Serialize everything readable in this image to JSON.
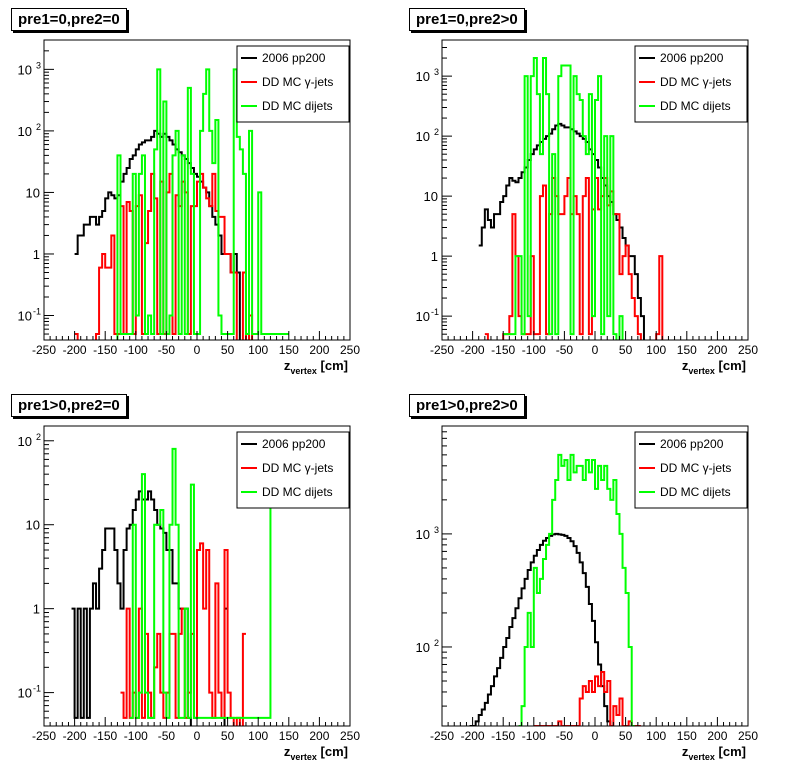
{
  "chart_data": [
    {
      "type": "histogram",
      "title": "pre1=0,pre2=0",
      "xlabel_main": "z",
      "xlabel_sub": "vertex",
      "xlabel_unit": " [cm]",
      "xlim": [
        -250,
        250
      ],
      "ylog": true,
      "ylim": [
        0.04,
        3000
      ],
      "xticks": [
        -250,
        -200,
        -150,
        -100,
        -50,
        0,
        50,
        100,
        150,
        200,
        250
      ],
      "yticks": [
        {
          "v": 0.1,
          "t": "10",
          "e": "-1"
        },
        {
          "v": 1,
          "t": "1",
          "e": ""
        },
        {
          "v": 10,
          "t": "10",
          "e": ""
        },
        {
          "v": 100,
          "t": "10",
          "e": "2"
        },
        {
          "v": 1000,
          "t": "10",
          "e": "3"
        }
      ],
      "legend": [
        "2006 pp200",
        "DD MC γ-jets",
        "DD MC dijets"
      ],
      "bin_width": 5,
      "series": [
        {
          "name": "2006 pp200",
          "color": "#000000",
          "start": -200,
          "values": [
            1,
            2,
            2,
            3,
            3,
            4,
            4,
            3,
            4,
            5,
            8,
            10,
            9,
            8,
            9,
            15,
            20,
            25,
            35,
            40,
            50,
            60,
            65,
            70,
            70,
            80,
            100,
            90,
            80,
            90,
            80,
            70,
            60,
            50,
            45,
            40,
            35,
            30,
            25,
            20,
            18,
            15,
            12,
            10,
            6,
            4,
            3,
            2,
            1,
            1,
            1,
            0.5,
            1,
            0.5,
            0,
            0
          ]
        },
        {
          "name": "DD MC γ-jets",
          "color": "#ff0000",
          "start": -200,
          "values": [
            0.05,
            0,
            0,
            0,
            0,
            0,
            0,
            0.05,
            0.6,
            1,
            0.6,
            0.6,
            2,
            0.05,
            0.05,
            6,
            0.05,
            7,
            5,
            0.05,
            6,
            9,
            0.05,
            1.5,
            5,
            20,
            8,
            0.05,
            15,
            0.05,
            10,
            20,
            0.05,
            9,
            6,
            15,
            10,
            0.05,
            6,
            6,
            15,
            20,
            12,
            8,
            6,
            20,
            5,
            4,
            4,
            1,
            1,
            0.5,
            0.5,
            0,
            0,
            0.5,
            0,
            0.1,
            0,
            0
          ]
        },
        {
          "name": "DD MC dijets",
          "color": "#00ff00",
          "start": -200,
          "values": [
            0,
            0,
            0,
            0,
            0,
            0,
            0,
            0,
            0,
            0,
            0,
            0,
            0,
            0,
            40,
            0.05,
            0.05,
            0.05,
            0.05,
            20,
            0.1,
            20,
            40,
            0.05,
            0.1,
            0.05,
            50,
            1000,
            0.05,
            300,
            0.05,
            0.1,
            40,
            100,
            0.05,
            40,
            0.05,
            500,
            20,
            0.05,
            0.05,
            100,
            400,
            1000,
            100,
            30,
            150,
            0.1,
            0.05,
            0.05,
            0.05,
            0.05,
            1000,
            80,
            50,
            20,
            0.05,
            100,
            0.05,
            0.05,
            10,
            0.05,
            0.05,
            0.05,
            0.05,
            0.05,
            0.05,
            0.05,
            0.05,
            0.05
          ]
        }
      ]
    },
    {
      "type": "histogram",
      "title": "pre1=0,pre2>0",
      "xlabel_main": "z",
      "xlabel_sub": "vertex",
      "xlabel_unit": " [cm]",
      "xlim": [
        -250,
        250
      ],
      "ylog": true,
      "ylim": [
        0.04,
        4000
      ],
      "xticks": [
        -250,
        -200,
        -150,
        -100,
        -50,
        0,
        50,
        100,
        150,
        200,
        250
      ],
      "yticks": [
        {
          "v": 0.1,
          "t": "10",
          "e": "-1"
        },
        {
          "v": 1,
          "t": "1",
          "e": ""
        },
        {
          "v": 10,
          "t": "10",
          "e": ""
        },
        {
          "v": 100,
          "t": "10",
          "e": "2"
        },
        {
          "v": 1000,
          "t": "10",
          "e": "3"
        }
      ],
      "legend": [
        "2006 pp200",
        "DD MC γ-jets",
        "DD MC dijets"
      ],
      "bin_width": 5,
      "series": [
        {
          "name": "2006 pp200",
          "color": "#000000",
          "start": -190,
          "values": [
            1.5,
            3,
            6,
            4,
            3,
            5,
            5,
            8,
            10,
            15,
            20,
            18,
            17,
            20,
            25,
            30,
            40,
            50,
            60,
            70,
            80,
            90,
            100,
            110,
            130,
            150,
            160,
            150,
            140,
            140,
            130,
            120,
            110,
            100,
            90,
            80,
            60,
            50,
            40,
            30,
            20,
            15,
            10,
            8,
            5,
            4,
            3,
            2,
            1.5,
            1,
            1,
            0.5,
            0.2,
            0.1,
            0,
            0
          ]
        },
        {
          "name": "DD MC γ-jets",
          "color": "#ff0000",
          "start": -180,
          "values": [
            0.05,
            0,
            0,
            0,
            0,
            0,
            0.05,
            0.05,
            0.1,
            5,
            1,
            0.1,
            0.05,
            0.05,
            0.05,
            1,
            0.05,
            0.05,
            10,
            15,
            0.05,
            5,
            20,
            10,
            5,
            5,
            10,
            20,
            5,
            10,
            5,
            0.05,
            10,
            20,
            0.05,
            6,
            20,
            6,
            10,
            20,
            7,
            12,
            5,
            5,
            0.5,
            1,
            1.5,
            0.5,
            0.2,
            0.1,
            0.05,
            0,
            0,
            0,
            0,
            0,
            0.05,
            1,
            0
          ]
        },
        {
          "name": "DD MC dijets",
          "color": "#00ff00",
          "start": -150,
          "values": [
            0.05,
            0.05,
            0.05,
            0.05,
            1,
            1,
            0.05,
            1000,
            0.1,
            1000,
            2000,
            500,
            50,
            2000,
            500,
            0.05,
            50,
            0.05,
            1000,
            1500,
            1500,
            1500,
            0.05,
            1000,
            500,
            400,
            100,
            50,
            500,
            0.1,
            400,
            1000,
            0.05,
            100,
            0.1,
            100,
            0.05,
            0,
            0.1,
            0,
            0
          ]
        }
      ]
    },
    {
      "type": "histogram",
      "title": "pre1>0,pre2=0",
      "xlabel_main": "z",
      "xlabel_sub": "vertex",
      "xlabel_unit": " [cm]",
      "xlim": [
        -250,
        250
      ],
      "ylog": true,
      "ylim": [
        0.04,
        150
      ],
      "xticks": [
        -250,
        -200,
        -150,
        -100,
        -50,
        0,
        50,
        100,
        150,
        200,
        250
      ],
      "yticks": [
        {
          "v": 0.1,
          "t": "10",
          "e": "-1"
        },
        {
          "v": 1,
          "t": "1",
          "e": ""
        },
        {
          "v": 10,
          "t": "10",
          "e": ""
        },
        {
          "v": 100,
          "t": "10",
          "e": "2"
        }
      ],
      "legend": [
        "2006 pp200",
        "DD MC γ-jets",
        "DD MC dijets"
      ],
      "bin_width": 5,
      "series": [
        {
          "name": "2006 pp200",
          "color": "#000000",
          "start": -205,
          "values": [
            1,
            0.05,
            1,
            0.05,
            1,
            0.05,
            1,
            2,
            1,
            3,
            5,
            9,
            9,
            9,
            5,
            2,
            1,
            5,
            9,
            10,
            15,
            20,
            25,
            20,
            20,
            25,
            20,
            15,
            10,
            9,
            8,
            5,
            5,
            2,
            2,
            1,
            1,
            1,
            0.05,
            0,
            0,
            0,
            0,
            0,
            0,
            0,
            0,
            0,
            0,
            0,
            1
          ]
        },
        {
          "name": "DD MC γ-jets",
          "color": "#ff0000",
          "start": -125,
          "values": [
            0.1,
            0.05,
            1,
            0.05,
            0.1,
            0.05,
            1,
            0.05,
            0.5,
            0.1,
            0.05,
            0.2,
            0.5,
            0.1,
            0.05,
            0.1,
            0.5,
            0.5,
            0.05,
            0.5,
            1,
            0.05,
            0.1,
            0.5,
            0.05,
            5,
            6,
            1,
            5,
            0.1,
            0.05,
            2,
            0.1,
            0.05,
            5,
            0.1,
            0.05,
            0,
            0.05,
            0,
            0.5
          ]
        },
        {
          "name": "DD MC dijets",
          "color": "#00ff00",
          "start": -110,
          "values": [
            0.05,
            10,
            0.05,
            0.1,
            40,
            0.1,
            0.05,
            0.05,
            10,
            10,
            15,
            0.1,
            0.05,
            10,
            80,
            10,
            0.05,
            0.05,
            1,
            0.05,
            30,
            0.05,
            0.05,
            0.05,
            0.05,
            0.05,
            0.05,
            0.05,
            0.05,
            0.05,
            0.05,
            0.05,
            0.05,
            0.05,
            0.05,
            0.05,
            0.05,
            0.05,
            0.05,
            0.05,
            0.05,
            0.05,
            0.05,
            0.05,
            0.05,
            0.05,
            80
          ]
        }
      ]
    },
    {
      "type": "histogram",
      "title": "pre1>0,pre2>0",
      "xlabel_main": "z",
      "xlabel_sub": "vertex",
      "xlabel_unit": " [cm]",
      "xlim": [
        -250,
        250
      ],
      "ylog": true,
      "ylim": [
        20,
        9000
      ],
      "xticks": [
        -250,
        -200,
        -150,
        -100,
        -50,
        0,
        50,
        100,
        150,
        200,
        250
      ],
      "yticks": [
        {
          "v": 100,
          "t": "10",
          "e": "2"
        },
        {
          "v": 1000,
          "t": "10",
          "e": "3"
        }
      ],
      "legend": [
        "2006 pp200",
        "DD MC γ-jets",
        "DD MC dijets"
      ],
      "bin_width": 5,
      "series": [
        {
          "name": "2006 pp200",
          "color": "#000000",
          "start": -205,
          "values": [
            20,
            20,
            22,
            25,
            28,
            32,
            38,
            45,
            55,
            65,
            80,
            100,
            120,
            150,
            180,
            220,
            270,
            330,
            400,
            480,
            560,
            640,
            720,
            800,
            870,
            920,
            960,
            990,
            1000,
            990,
            980,
            960,
            920,
            860,
            780,
            680,
            560,
            450,
            340,
            240,
            170,
            110,
            70,
            45,
            30,
            22,
            20
          ]
        },
        {
          "name": "DD MC γ-jets",
          "color": "#ff0000",
          "start": -100,
          "values": [
            20,
            20,
            20,
            20,
            20,
            20,
            20,
            20,
            22,
            20,
            20,
            20,
            20,
            20,
            20,
            35,
            45,
            40,
            50,
            40,
            55,
            45,
            60,
            40,
            50,
            20,
            30,
            25,
            35,
            20,
            20,
            22,
            20,
            20,
            20
          ]
        },
        {
          "name": "DD MC dijets",
          "color": "#00ff00",
          "start": -125,
          "values": [
            20,
            30,
            100,
            200,
            100,
            500,
            300,
            400,
            600,
            800,
            1000,
            2000,
            3000,
            5000,
            4000,
            4500,
            3000,
            5000,
            3500,
            4000,
            4000,
            3000,
            4500,
            3500,
            4500,
            2500,
            4000,
            3000,
            4000,
            2500,
            2000,
            3000,
            1500,
            1000,
            500,
            300,
            100,
            20
          ]
        }
      ]
    }
  ]
}
